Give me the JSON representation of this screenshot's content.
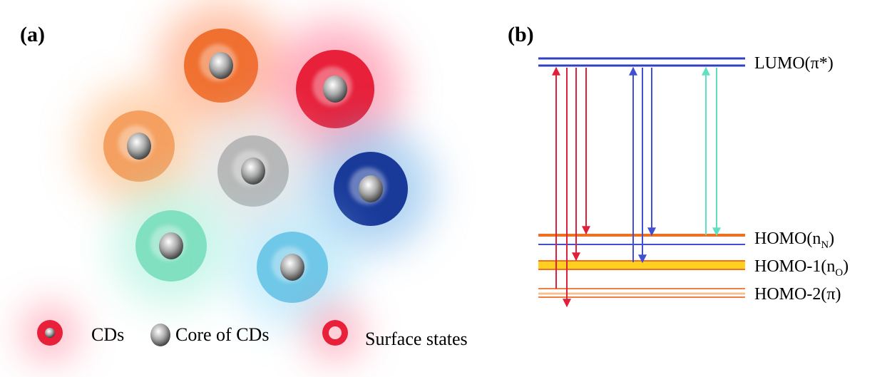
{
  "panel_a": {
    "label": "(a)",
    "legend": [
      {
        "label": "CDs"
      },
      {
        "label": "Core of CDs"
      },
      {
        "label": "Surface states"
      }
    ]
  },
  "panel_b": {
    "label": "(b)",
    "levels": [
      {
        "text": "LUMO(π*)",
        "sub": null,
        "tail": null
      },
      {
        "text": "HOMO(n",
        "sub": "N",
        "tail": ")"
      },
      {
        "text": "HOMO-1(n",
        "sub": "O",
        "tail": ")"
      },
      {
        "text": "HOMO-2(π)",
        "sub": null,
        "tail": null
      }
    ]
  }
}
